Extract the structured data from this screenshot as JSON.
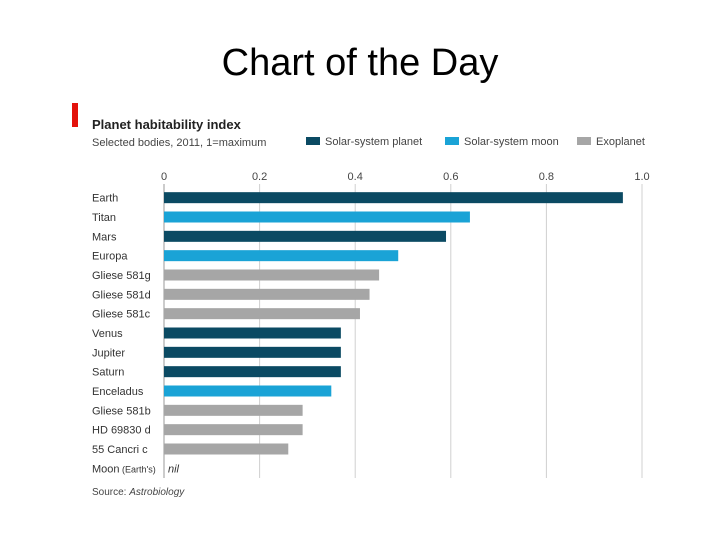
{
  "slide": {
    "title": "Chart of the Day"
  },
  "chart_data": {
    "type": "bar",
    "orientation": "horizontal",
    "title": "Planet habitability index",
    "subtitle": "Selected bodies, 2011, 1=maximum",
    "source_label": "Source:",
    "source": "Astrobiology",
    "xlim": [
      0,
      1.0
    ],
    "xticks": [
      0,
      0.2,
      0.4,
      0.6,
      0.8,
      1.0
    ],
    "xtick_labels": [
      "0",
      "0.2",
      "0.4",
      "0.6",
      "0.8",
      "1.0"
    ],
    "grid": true,
    "legend_position": "top-right",
    "legend": [
      {
        "key": "planet",
        "label": "Solar-system planet",
        "color": "#0b4a63"
      },
      {
        "key": "moon",
        "label": "Solar-system moon",
        "color": "#1aa3d6"
      },
      {
        "key": "exo",
        "label": "Exoplanet",
        "color": "#a6a6a6"
      }
    ],
    "bars": [
      {
        "label": "Earth",
        "value": 0.96,
        "group": "planet"
      },
      {
        "label": "Titan",
        "value": 0.64,
        "group": "moon"
      },
      {
        "label": "Mars",
        "value": 0.59,
        "group": "planet"
      },
      {
        "label": "Europa",
        "value": 0.49,
        "group": "moon"
      },
      {
        "label": "Gliese 581g",
        "value": 0.45,
        "group": "exo"
      },
      {
        "label": "Gliese 581d",
        "value": 0.43,
        "group": "exo"
      },
      {
        "label": "Gliese 581c",
        "value": 0.41,
        "group": "exo"
      },
      {
        "label": "Venus",
        "value": 0.37,
        "group": "planet"
      },
      {
        "label": "Jupiter",
        "value": 0.37,
        "group": "planet"
      },
      {
        "label": "Saturn",
        "value": 0.37,
        "group": "planet"
      },
      {
        "label": "Enceladus",
        "value": 0.35,
        "group": "moon"
      },
      {
        "label": "Gliese 581b",
        "value": 0.29,
        "group": "exo"
      },
      {
        "label": "HD 69830 d",
        "value": 0.29,
        "group": "exo"
      },
      {
        "label": "55 Cancri c",
        "value": 0.26,
        "group": "exo"
      },
      {
        "label": "Moon",
        "label_note": "(Earth's)",
        "value": null,
        "value_text": "nil",
        "group": "moon"
      }
    ]
  }
}
